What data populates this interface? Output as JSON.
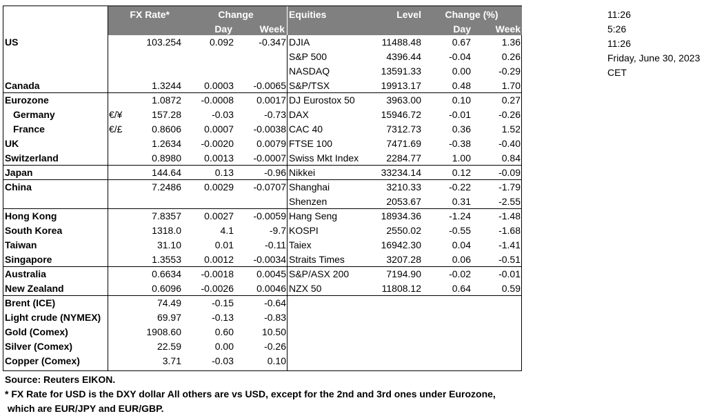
{
  "headers": {
    "fx_rate": "FX Rate*",
    "change": "Change",
    "day": "Day",
    "week": "Week",
    "equities": "Equities",
    "level": "Level",
    "change_pct": "Change (%)",
    "day2": "Day",
    "week2": "Week"
  },
  "rows": [
    {
      "region": "US",
      "region_bold": true,
      "fx_pair": "",
      "fx_rate": "103.254",
      "fx_day": "0.092",
      "fx_week": "-0.347",
      "eq": "DJIA",
      "level": "11488.48",
      "eq_day": "0.67",
      "eq_week": "1.36"
    },
    {
      "region": "",
      "region_bold": false,
      "fx_pair": "",
      "fx_rate": "",
      "fx_day": "",
      "fx_week": "",
      "eq": "S&P 500",
      "level": "4396.44",
      "eq_day": "-0.04",
      "eq_week": "0.26"
    },
    {
      "region": "",
      "region_bold": false,
      "fx_pair": "",
      "fx_rate": "",
      "fx_day": "",
      "fx_week": "",
      "eq": "NASDAQ",
      "level": "13591.33",
      "eq_day": "0.00",
      "eq_week": "-0.29"
    },
    {
      "region": "Canada",
      "region_bold": true,
      "fx_pair": "",
      "fx_rate": "1.3244",
      "fx_day": "0.0003",
      "fx_week": "-0.0065",
      "eq": "S&P/TSX",
      "level": "19913.17",
      "eq_day": "0.48",
      "eq_week": "1.70"
    },
    {
      "region": "Eurozone",
      "region_bold": true,
      "fx_pair": "",
      "fx_rate": "1.0872",
      "fx_day": "-0.0008",
      "fx_week": "0.0017",
      "eq": "DJ Eurostox 50",
      "level": "3963.00",
      "eq_day": "0.10",
      "eq_week": "0.27"
    },
    {
      "region": "Germany",
      "region_bold": true,
      "indent": true,
      "fx_pair": "€/¥",
      "fx_rate": "157.28",
      "fx_day": "-0.03",
      "fx_week": "-0.73",
      "eq": "DAX",
      "level": "15946.72",
      "eq_day": "-0.01",
      "eq_week": "-0.26"
    },
    {
      "region": "France",
      "region_bold": true,
      "indent": true,
      "fx_pair": "€/£",
      "fx_rate": "0.8606",
      "fx_day": "0.0007",
      "fx_week": "-0.0038",
      "eq": "CAC 40",
      "level": "7312.73",
      "eq_day": "0.36",
      "eq_week": "1.52"
    },
    {
      "region": "UK",
      "region_bold": true,
      "fx_pair": "",
      "fx_rate": "1.2634",
      "fx_day": "-0.0020",
      "fx_week": "0.0079",
      "eq": "FTSE 100",
      "level": "7471.69",
      "eq_day": "-0.38",
      "eq_week": "-0.40"
    },
    {
      "region": "Switzerland",
      "region_bold": true,
      "fx_pair": "",
      "fx_rate": "0.8980",
      "fx_day": "0.0013",
      "fx_week": "-0.0007",
      "eq": "Swiss Mkt Index",
      "level": "2284.77",
      "eq_day": "1.00",
      "eq_week": "0.84"
    },
    {
      "region": "Japan",
      "region_bold": true,
      "fx_pair": "",
      "fx_rate": "144.64",
      "fx_day": "0.13",
      "fx_week": "-0.96",
      "eq": "Nikkei",
      "level": "33234.14",
      "eq_day": "0.12",
      "eq_week": "-0.09"
    },
    {
      "region": "China",
      "region_bold": true,
      "fx_pair": "",
      "fx_rate": "7.2486",
      "fx_day": "0.0029",
      "fx_week": "-0.0707",
      "eq": "Shanghai",
      "level": "3210.33",
      "eq_day": "-0.22",
      "eq_week": "-1.79"
    },
    {
      "region": "",
      "region_bold": false,
      "fx_pair": "",
      "fx_rate": "",
      "fx_day": "",
      "fx_week": "",
      "eq": "Shenzen",
      "level": "2053.67",
      "eq_day": "0.31",
      "eq_week": "-2.55"
    },
    {
      "region": "Hong Kong",
      "region_bold": true,
      "fx_pair": "",
      "fx_rate": "7.8357",
      "fx_day": "0.0027",
      "fx_week": "-0.0059",
      "eq": "Hang Seng",
      "level": "18934.36",
      "eq_day": "-1.24",
      "eq_week": "-1.48"
    },
    {
      "region": "South Korea",
      "region_bold": true,
      "fx_pair": "",
      "fx_rate": "1318.0",
      "fx_day": "4.1",
      "fx_week": "-9.7",
      "eq": "KOSPI",
      "level": "2550.02",
      "eq_day": "-0.55",
      "eq_week": "-1.68"
    },
    {
      "region": "Taiwan",
      "region_bold": true,
      "fx_pair": "",
      "fx_rate": "31.10",
      "fx_day": "0.01",
      "fx_week": "-0.11",
      "eq": "Taiex",
      "level": "16942.30",
      "eq_day": "0.04",
      "eq_week": "-1.41"
    },
    {
      "region": "Singapore",
      "region_bold": true,
      "fx_pair": "",
      "fx_rate": "1.3553",
      "fx_day": "0.0012",
      "fx_week": "-0.0034",
      "eq": "Straits Times",
      "level": "3207.28",
      "eq_day": "0.06",
      "eq_week": "-0.51"
    },
    {
      "region": "Australia",
      "region_bold": true,
      "fx_pair": "",
      "fx_rate": "0.6634",
      "fx_day": "-0.0018",
      "fx_week": "0.0045",
      "eq": "S&P/ASX  200",
      "level": "7194.90",
      "eq_day": "-0.02",
      "eq_week": "-0.01"
    },
    {
      "region": "New Zealand",
      "region_bold": true,
      "fx_pair": "",
      "fx_rate": "0.6096",
      "fx_day": "-0.0026",
      "fx_week": "0.0046",
      "eq": "NZX 50",
      "level": "11808.12",
      "eq_day": "0.64",
      "eq_week": "0.59"
    },
    {
      "region": "Brent (ICE)",
      "region_bold": true,
      "fx_pair": "",
      "fx_rate": "74.49",
      "fx_day": "-0.15",
      "fx_week": "-0.64",
      "eq": "",
      "level": "",
      "eq_day": "",
      "eq_week": ""
    },
    {
      "region": "Light crude (NYMEX)",
      "region_bold": true,
      "fx_pair": "",
      "fx_rate": "69.97",
      "fx_day": "-0.13",
      "fx_week": "-0.83",
      "eq": "",
      "level": "",
      "eq_day": "",
      "eq_week": ""
    },
    {
      "region": "Gold (Comex)",
      "region_bold": true,
      "fx_pair": "",
      "fx_rate": "1908.60",
      "fx_day": "0.60",
      "fx_week": "10.50",
      "eq": "",
      "level": "",
      "eq_day": "",
      "eq_week": ""
    },
    {
      "region": "Silver (Comex)",
      "region_bold": true,
      "fx_pair": "",
      "fx_rate": "22.59",
      "fx_day": "0.00",
      "fx_week": "-0.26",
      "eq": "",
      "level": "",
      "eq_day": "",
      "eq_week": ""
    },
    {
      "region": "Copper (Comex)",
      "region_bold": true,
      "fx_pair": "",
      "fx_rate": "3.71",
      "fx_day": "-0.03",
      "fx_week": "0.10",
      "eq": "",
      "level": "",
      "eq_day": "",
      "eq_week": ""
    }
  ],
  "side": [
    "11:26",
    "5:26",
    "11:26",
    "Friday, June 30, 2023",
    "CET"
  ],
  "notes": {
    "source": "Source:  Reuters EIKON.",
    "footnote1": "* FX Rate for USD is the DXY dollar  All others are vs USD, except for the 2nd and 3rd ones under Eurozone,",
    "footnote2": " which are EUR/JPY and EUR/GBP."
  },
  "colors": {
    "header_bg": "#808080",
    "header_text": "#ffffff"
  }
}
